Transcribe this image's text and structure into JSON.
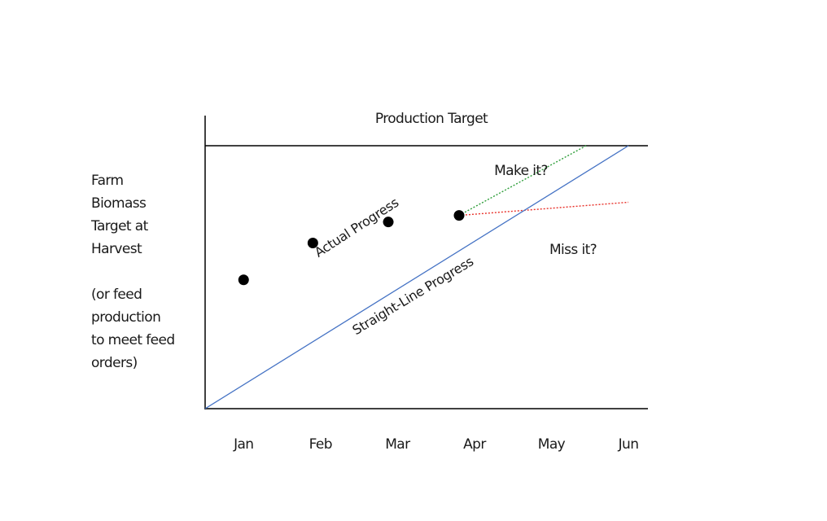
{
  "chart_data": {
    "type": "line",
    "categories": [
      "Jan",
      "Feb",
      "Mar",
      "Apr",
      "May",
      "Jun"
    ],
    "title": "Production Target",
    "ylabel_lines": [
      "Farm",
      "Biomass",
      "Target at",
      "Harvest"
    ],
    "ylabel_note_lines": [
      "(or feed",
      "production",
      "to meet feed",
      "orders)"
    ],
    "series": [
      {
        "name": "Straight-Line Progress",
        "style": "solid",
        "color": "#4472c4",
        "points": [
          [
            -0.5,
            0
          ],
          [
            5.0,
            1.0
          ]
        ]
      },
      {
        "name": "Actual Progress",
        "style": "markers",
        "color": "#000000",
        "points": [
          [
            0.0,
            0.49
          ],
          [
            0.9,
            0.63
          ],
          [
            1.88,
            0.71
          ],
          [
            2.8,
            0.735
          ]
        ]
      },
      {
        "name": "Make it?",
        "style": "dotted",
        "color": "#2e9e3a",
        "points": [
          [
            2.8,
            0.735
          ],
          [
            4.45,
            1.0
          ]
        ]
      },
      {
        "name": "Miss it?",
        "style": "dotted",
        "color": "#e8312a",
        "points": [
          [
            2.8,
            0.735
          ],
          [
            5.0,
            0.785
          ]
        ]
      }
    ],
    "target_line_value": 1.0,
    "xlim": [
      -0.5,
      5.0
    ],
    "ylim": [
      0,
      1.0
    ]
  }
}
